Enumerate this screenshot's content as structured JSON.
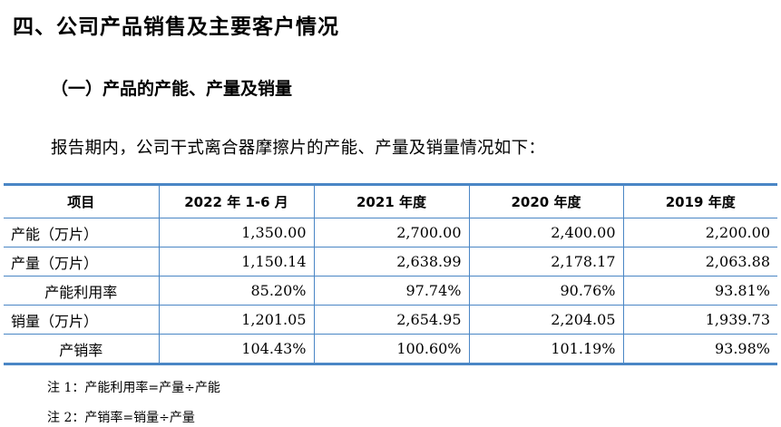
{
  "heading1": "四、公司产品销售及主要客户情况",
  "heading2": "（一）产品的产能、产量及销量",
  "intro": "报告期内，公司干式离合器摩擦片的产能、产量及销量情况如下：",
  "table": {
    "headers": [
      "项目",
      "2022 年 1-6 月",
      "2021 年度",
      "2020 年度",
      "2019 年度"
    ],
    "rows": [
      {
        "label": "产能（万片）",
        "values": [
          "1,350.00",
          "2,700.00",
          "2,400.00",
          "2,200.00"
        ]
      },
      {
        "label": "产量（万片）",
        "values": [
          "1,150.14",
          "2,638.99",
          "2,178.17",
          "2,063.88"
        ]
      },
      {
        "label": "产能利用率",
        "values": [
          "85.20%",
          "97.74%",
          "90.76%",
          "93.81%"
        ]
      },
      {
        "label": "销量（万片）",
        "values": [
          "1,201.05",
          "2,654.95",
          "2,204.05",
          "1,939.73"
        ]
      },
      {
        "label": "产销率",
        "values": [
          "104.43%",
          "100.60%",
          "101.19%",
          "93.98%"
        ]
      }
    ]
  },
  "notes": [
    "注 1：产能利用率=产量÷产能",
    "注 2：产销率=销量÷产量"
  ],
  "colors": {
    "table_rule": "#4a86c5"
  }
}
